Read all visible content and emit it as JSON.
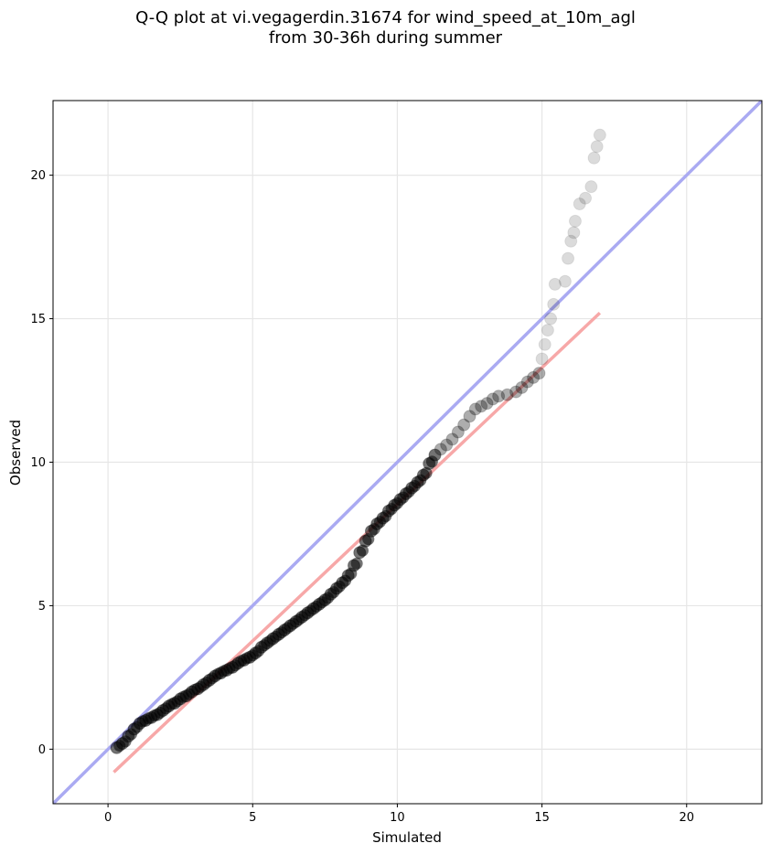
{
  "title": {
    "line1": "Q-Q plot at vi.vegagerdin.31674 for wind_speed_at_10m_agl",
    "line2": "from 30-36h during summer"
  },
  "colors": {
    "points": "#000000",
    "identity_line": "#aaaaf2",
    "fit_line": "#f7a8a8",
    "grid": "#e6e6e6"
  },
  "chart_data": {
    "type": "scatter",
    "xlabel": "Simulated",
    "ylabel": "Observed",
    "xlim": [
      -1.9,
      22.6
    ],
    "ylim": [
      -1.9,
      22.6
    ],
    "xticks": [
      0,
      5,
      10,
      15,
      20
    ],
    "yticks": [
      0,
      5,
      10,
      15,
      20
    ],
    "grid": true,
    "reference_lines": [
      {
        "kind": "identity",
        "color": "#aaaaf2",
        "x": [
          -1.9,
          22.6
        ],
        "y": [
          -1.9,
          22.6
        ]
      },
      {
        "kind": "fit",
        "color": "#f7a8a8",
        "x": [
          0.2,
          17.0
        ],
        "y": [
          -0.8,
          15.2
        ]
      }
    ],
    "points": [
      [
        0.3,
        0.05
      ],
      [
        0.5,
        0.2
      ],
      [
        0.7,
        0.45
      ],
      [
        0.9,
        0.7
      ],
      [
        1.1,
        0.9
      ],
      [
        1.3,
        1.0
      ],
      [
        1.5,
        1.1
      ],
      [
        1.7,
        1.2
      ],
      [
        1.9,
        1.35
      ],
      [
        2.1,
        1.5
      ],
      [
        2.3,
        1.6
      ],
      [
        2.5,
        1.75
      ],
      [
        2.7,
        1.85
      ],
      [
        2.9,
        2.0
      ],
      [
        3.1,
        2.1
      ],
      [
        3.3,
        2.25
      ],
      [
        3.5,
        2.4
      ],
      [
        3.7,
        2.55
      ],
      [
        3.9,
        2.65
      ],
      [
        4.1,
        2.75
      ],
      [
        4.3,
        2.85
      ],
      [
        4.5,
        3.0
      ],
      [
        4.7,
        3.1
      ],
      [
        4.9,
        3.2
      ],
      [
        5.1,
        3.35
      ],
      [
        5.3,
        3.55
      ],
      [
        5.5,
        3.7
      ],
      [
        5.7,
        3.85
      ],
      [
        5.9,
        4.0
      ],
      [
        6.1,
        4.15
      ],
      [
        6.3,
        4.3
      ],
      [
        6.5,
        4.45
      ],
      [
        6.7,
        4.6
      ],
      [
        6.9,
        4.75
      ],
      [
        7.1,
        4.9
      ],
      [
        7.3,
        5.05
      ],
      [
        7.5,
        5.2
      ],
      [
        7.7,
        5.4
      ],
      [
        7.9,
        5.6
      ],
      [
        8.1,
        5.8
      ],
      [
        8.3,
        6.05
      ],
      [
        8.5,
        6.4
      ],
      [
        8.7,
        6.85
      ],
      [
        8.9,
        7.25
      ],
      [
        9.1,
        7.6
      ],
      [
        9.3,
        7.85
      ],
      [
        9.5,
        8.05
      ],
      [
        9.7,
        8.3
      ],
      [
        9.9,
        8.5
      ],
      [
        10.1,
        8.7
      ],
      [
        10.3,
        8.9
      ],
      [
        10.5,
        9.1
      ],
      [
        10.7,
        9.3
      ],
      [
        10.9,
        9.55
      ],
      [
        11.1,
        9.95
      ],
      [
        11.3,
        10.25
      ],
      [
        11.5,
        10.45
      ],
      [
        11.7,
        10.6
      ],
      [
        11.9,
        10.8
      ],
      [
        12.1,
        11.05
      ],
      [
        12.3,
        11.3
      ],
      [
        12.5,
        11.6
      ],
      [
        12.7,
        11.85
      ],
      [
        12.9,
        11.95
      ],
      [
        13.1,
        12.05
      ],
      [
        13.3,
        12.2
      ],
      [
        13.5,
        12.3
      ],
      [
        13.8,
        12.35
      ],
      [
        14.1,
        12.45
      ],
      [
        14.3,
        12.6
      ],
      [
        14.5,
        12.8
      ],
      [
        14.7,
        12.95
      ],
      [
        14.9,
        13.1
      ],
      [
        15.0,
        13.6
      ],
      [
        15.1,
        14.1
      ],
      [
        15.2,
        14.6
      ],
      [
        15.3,
        15.0
      ],
      [
        15.4,
        15.5
      ],
      [
        15.45,
        16.2
      ],
      [
        15.8,
        16.3
      ],
      [
        15.9,
        17.1
      ],
      [
        16.0,
        17.7
      ],
      [
        16.1,
        18.0
      ],
      [
        16.15,
        18.4
      ],
      [
        16.3,
        19.0
      ],
      [
        16.5,
        19.2
      ],
      [
        16.7,
        19.6
      ],
      [
        16.8,
        20.6
      ],
      [
        16.9,
        21.0
      ],
      [
        17.0,
        21.4
      ]
    ]
  }
}
